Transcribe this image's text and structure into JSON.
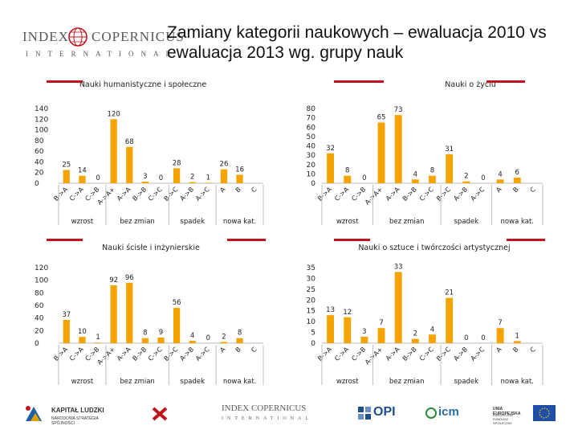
{
  "header": {
    "logo_main": "INDEX",
    "logo_second": "COPERNICUS",
    "logo_sub": "INTERNATIONAL",
    "title_line1": "Zamiany kategorii naukowych – ewaluacja 2010 vs",
    "title_line2": "ewaluacja 2013 wg. grupy nauk"
  },
  "colors": {
    "bar": "#f5a300",
    "accent": "#c0141c",
    "axis": "#bdbdbd"
  },
  "chart_data": [
    {
      "type": "bar",
      "title": "Nauki humanistyczne i społeczne",
      "categories": [
        "B->A",
        "C->A",
        "C->B",
        "A->A+",
        "A->A",
        "B->B",
        "C->C",
        "B->C",
        "A->B",
        "A->C",
        "A",
        "B",
        "C"
      ],
      "values": [
        25,
        14,
        0,
        120,
        68,
        3,
        0,
        28,
        2,
        1,
        26,
        16,
        null
      ],
      "value_labels": [
        "25",
        "14",
        "0",
        "120",
        "68",
        "3",
        "0",
        "28",
        "2",
        "1",
        "26",
        "16",
        ""
      ],
      "yticks": [
        "0",
        "20",
        "40",
        "60",
        "80",
        "100",
        "120",
        "140"
      ],
      "ylim": [
        0,
        140
      ],
      "groups": [
        "wzrost",
        "bez zmian",
        "spadek",
        "nowa kat."
      ]
    },
    {
      "type": "bar",
      "title": "Nauki o życiu",
      "categories": [
        "B->A",
        "C->A",
        "C->B",
        "A->A+",
        "A->A",
        "B->B",
        "C->C",
        "B->C",
        "A->B",
        "A->C",
        "A",
        "B",
        "C"
      ],
      "values": [
        32,
        8,
        0,
        65,
        73,
        4,
        8,
        31,
        2,
        0,
        4,
        6,
        null
      ],
      "value_labels": [
        "32",
        "8",
        "0",
        "65",
        "73",
        "4",
        "8",
        "31",
        "2",
        "0",
        "4",
        "6",
        ""
      ],
      "yticks": [
        "0",
        "10",
        "20",
        "30",
        "40",
        "50",
        "60",
        "70",
        "80"
      ],
      "ylim": [
        0,
        80
      ],
      "groups": [
        "wzrost",
        "bez zmian",
        "spadek",
        "nowa kat."
      ]
    },
    {
      "type": "bar",
      "title": "Nauki ścisłe i inżynierskie",
      "categories": [
        "B->A",
        "C->A",
        "C->B",
        "A->A+",
        "A->A",
        "B->B",
        "C->C",
        "B->C",
        "A->B",
        "A->C",
        "A",
        "B",
        "C"
      ],
      "values": [
        37,
        10,
        1,
        92,
        96,
        8,
        9,
        56,
        4,
        0,
        2,
        8,
        null
      ],
      "value_labels": [
        "37",
        "10",
        "1",
        "92",
        "96",
        "8",
        "9",
        "56",
        "4",
        "0",
        "2",
        "8",
        ""
      ],
      "yticks": [
        "0",
        "20",
        "40",
        "60",
        "80",
        "100",
        "120"
      ],
      "ylim": [
        0,
        120
      ],
      "groups": [
        "wzrost",
        "bez zmian",
        "spadek",
        "nowa kat."
      ]
    },
    {
      "type": "bar",
      "title": "Nauki o sztuce i twórczości artystycznej",
      "categories": [
        "B->A",
        "C->A",
        "C->B",
        "A->A+",
        "A->A",
        "B->B",
        "C->C",
        "B->C",
        "A->B",
        "A->C",
        "A",
        "B",
        "C"
      ],
      "values": [
        13,
        12,
        3,
        7,
        33,
        2,
        4,
        21,
        0,
        0,
        7,
        1,
        null
      ],
      "value_labels": [
        "13",
        "12",
        "3",
        "7",
        "33",
        "2",
        "4",
        "21",
        "0",
        "0",
        "7",
        "1",
        ""
      ],
      "yticks": [
        "0",
        "5",
        "10",
        "15",
        "20",
        "25",
        "30",
        "35"
      ],
      "ylim": [
        0,
        35
      ],
      "groups": [
        "wzrost",
        "bez zmian",
        "spadek",
        "nowa kat."
      ]
    }
  ],
  "footer": {
    "kapital": "KAPITAŁ LUDZKI",
    "kapital_sub": "NARODOWA STRATEGIA SPÓJNOŚCI",
    "index": "INDEX COPERNICUS",
    "index_sub": "INTERNATIONAL",
    "opi": "OPI",
    "icm": "icm",
    "ue": "UNIA EUROPEJSKA",
    "ue_sub": "EUROPEJSKI FUNDUSZ SPOŁECZNY"
  }
}
